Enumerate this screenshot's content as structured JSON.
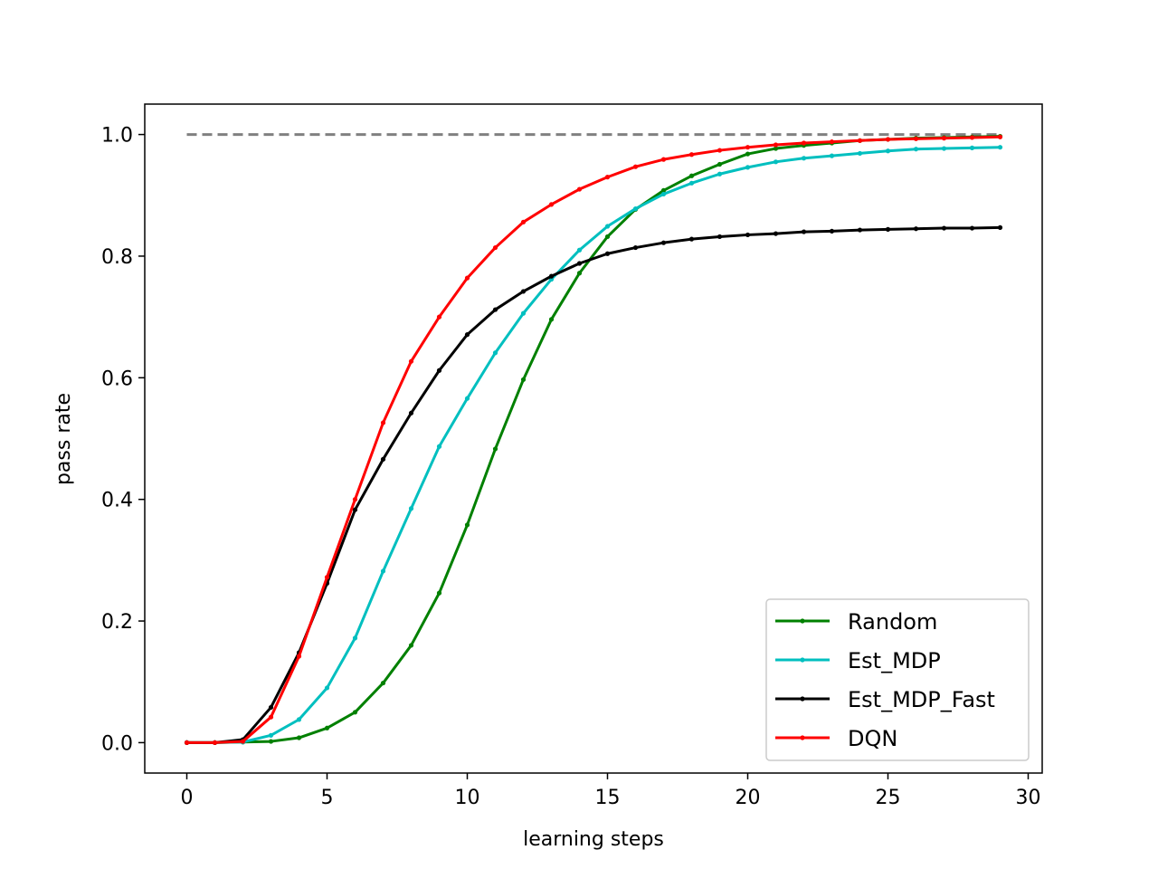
{
  "chart_data": {
    "type": "line",
    "title": "",
    "xlabel": "learning steps",
    "ylabel": "pass rate",
    "xlim": [
      -1.5,
      30.5
    ],
    "ylim": [
      -0.05,
      1.05
    ],
    "xticks": [
      0,
      5,
      10,
      15,
      20,
      25,
      30
    ],
    "yticks": [
      0.0,
      0.2,
      0.4,
      0.6,
      0.8,
      1.0
    ],
    "xtick_labels": [
      "0",
      "5",
      "10",
      "15",
      "20",
      "25",
      "30"
    ],
    "ytick_labels": [
      "0.0",
      "0.2",
      "0.4",
      "0.6",
      "0.8",
      "1.0"
    ],
    "grid": false,
    "legend_position": "lower-right",
    "reference_line": {
      "y": 1.0,
      "x_range": [
        0,
        29
      ],
      "color": "#808080",
      "style": "dashed"
    },
    "x": [
      0,
      1,
      2,
      3,
      4,
      5,
      6,
      7,
      8,
      9,
      10,
      11,
      12,
      13,
      14,
      15,
      16,
      17,
      18,
      19,
      20,
      21,
      22,
      23,
      24,
      25,
      26,
      27,
      28,
      29
    ],
    "series": [
      {
        "name": "Random",
        "color": "#008000",
        "values": [
          0.0,
          0.0,
          0.001,
          0.002,
          0.008,
          0.024,
          0.05,
          0.098,
          0.16,
          0.246,
          0.358,
          0.483,
          0.597,
          0.696,
          0.772,
          0.832,
          0.877,
          0.908,
          0.932,
          0.951,
          0.968,
          0.977,
          0.982,
          0.986,
          0.99,
          0.992,
          0.994,
          0.995,
          0.996,
          0.997
        ]
      },
      {
        "name": "Est_MDP",
        "color": "#00BFBF",
        "values": [
          0.0,
          0.0,
          0.001,
          0.012,
          0.038,
          0.09,
          0.172,
          0.282,
          0.385,
          0.487,
          0.566,
          0.641,
          0.706,
          0.762,
          0.81,
          0.849,
          0.878,
          0.902,
          0.92,
          0.935,
          0.946,
          0.955,
          0.961,
          0.965,
          0.969,
          0.973,
          0.976,
          0.977,
          0.978,
          0.979
        ]
      },
      {
        "name": "Est_MDP_Fast",
        "color": "#000000",
        "values": [
          0.0,
          0.0,
          0.005,
          0.058,
          0.148,
          0.262,
          0.383,
          0.466,
          0.542,
          0.612,
          0.671,
          0.712,
          0.742,
          0.767,
          0.788,
          0.804,
          0.814,
          0.822,
          0.828,
          0.832,
          0.835,
          0.837,
          0.84,
          0.841,
          0.843,
          0.844,
          0.845,
          0.846,
          0.846,
          0.847
        ]
      },
      {
        "name": "DQN",
        "color": "#FF0000",
        "values": [
          0.0,
          0.0,
          0.002,
          0.042,
          0.142,
          0.272,
          0.4,
          0.526,
          0.627,
          0.7,
          0.764,
          0.814,
          0.856,
          0.885,
          0.91,
          0.93,
          0.947,
          0.959,
          0.967,
          0.974,
          0.979,
          0.983,
          0.986,
          0.988,
          0.99,
          0.992,
          0.993,
          0.994,
          0.995,
          0.996
        ]
      }
    ]
  }
}
